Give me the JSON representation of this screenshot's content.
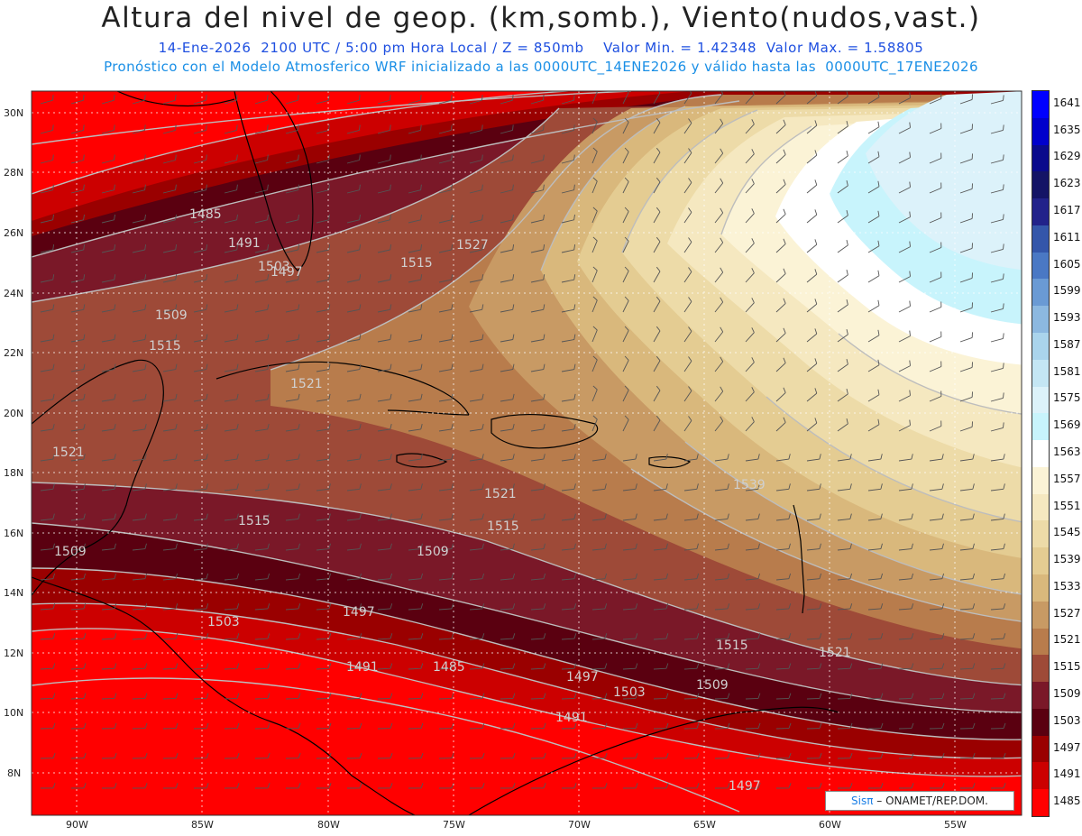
{
  "header": {
    "title": "Altura del nivel de geop. (km,somb.), Viento(nudos,vast.)",
    "line1": "14-Ene-2026  2100 UTC / 5:00 pm Hora Local / Z = 850mb    Valor Min. = 1.42348  Valor Max. = 1.58805",
    "line2": "Pronóstico con el Modelo Atmosferico WRF inicializado a las 0000UTC_14ENE2026 y válido hasta las  0000UTC_17ENE2026"
  },
  "map": {
    "lat_labels": [
      "30N",
      "28N",
      "26N",
      "24N",
      "22N",
      "20N",
      "18N",
      "16N",
      "14N",
      "12N",
      "10N",
      "8N"
    ],
    "lon_labels": [
      "90W",
      "85W",
      "80W",
      "75W",
      "70W",
      "65W",
      "60W",
      "55W"
    ],
    "contour_labels": [
      "1485",
      "1491",
      "1497",
      "1503",
      "1509",
      "1515",
      "1521",
      "1521",
      "1515",
      "1509",
      "1503",
      "1497",
      "1491",
      "1485",
      "1515",
      "1521",
      "1509",
      "1497",
      "1539",
      "1521",
      "1527",
      "1503",
      "1515",
      "1497",
      "1491",
      "1509",
      "1515"
    ]
  },
  "legend": {
    "levels": [
      "1641",
      "1635",
      "1629",
      "1623",
      "1617",
      "1611",
      "1605",
      "1599",
      "1593",
      "1587",
      "1581",
      "1575",
      "1569",
      "1563",
      "1557",
      "1551",
      "1545",
      "1539",
      "1533",
      "1527",
      "1521",
      "1515",
      "1509",
      "1503",
      "1497",
      "1491",
      "1485"
    ],
    "colors": [
      "#0000ff",
      "#0000cc",
      "#0a0a8c",
      "#141466",
      "#22228a",
      "#3456aa",
      "#4a78c4",
      "#6a9ad4",
      "#8cb8e0",
      "#aad4ec",
      "#c4e6f4",
      "#dcf2fa",
      "#c8f4fc",
      "#ffffff",
      "#fbf3d6",
      "#f5e8c0",
      "#eddba8",
      "#e4cc92",
      "#d9b87c",
      "#c89a64",
      "#b87c4c",
      "#9e4a38",
      "#7a1828",
      "#5a0010",
      "#9a0000",
      "#cc0000",
      "#ff0000"
    ]
  },
  "credit": {
    "brand": "Sisπ",
    "text": " – ONAMET/REP.DOM."
  }
}
